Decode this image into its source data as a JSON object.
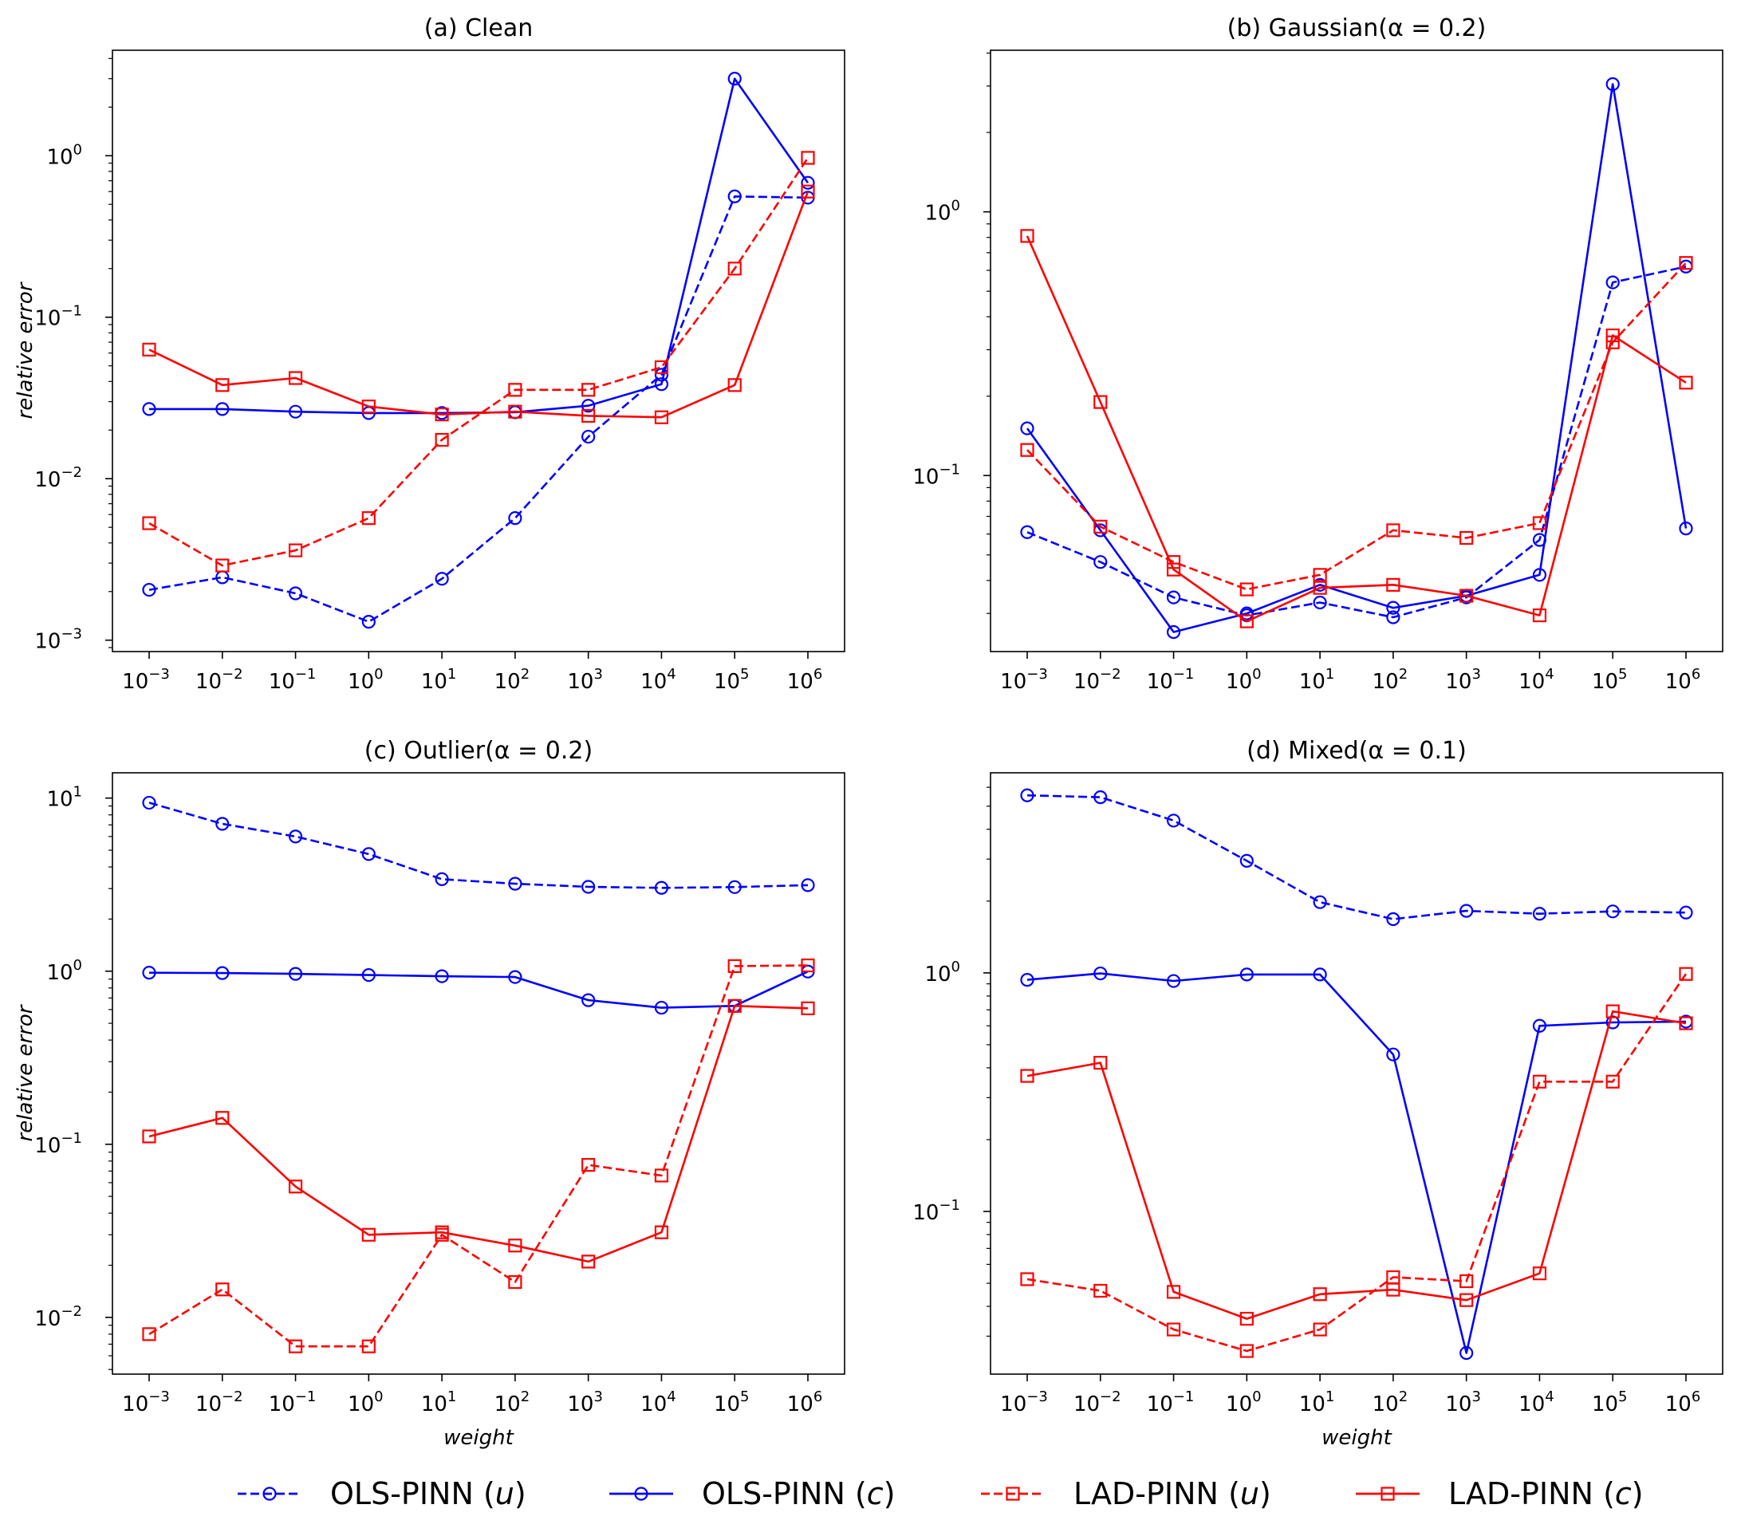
{
  "legend": [
    {
      "label": "OLS-PINN (",
      "var": "u",
      "close": ")",
      "color": "#0000ff",
      "dash": true,
      "marker": "circle"
    },
    {
      "label": "OLS-PINN (",
      "var": "c",
      "close": ")",
      "color": "#0000ff",
      "dash": false,
      "marker": "circle"
    },
    {
      "label": "LAD-PINN (",
      "var": "u",
      "close": ")",
      "color": "#ff0000",
      "dash": true,
      "marker": "square"
    },
    {
      "label": "LAD-PINN (",
      "var": "c",
      "close": ")",
      "color": "#ff0000",
      "dash": false,
      "marker": "square"
    }
  ],
  "chart_data": [
    {
      "type": "line",
      "title": "(a) Clean",
      "xlabel": "",
      "ylabel": "relative error",
      "xscale": "log",
      "yscale": "log",
      "x_exponents": [
        -3,
        -2,
        -1,
        0,
        1,
        2,
        3,
        4,
        5,
        6
      ],
      "y_tick_exponents": [
        -3,
        -2,
        -1,
        0
      ],
      "ylim": [
        0.00085,
        4.5
      ],
      "series": [
        {
          "name": "OLS-PINN (u)",
          "values": [
            0.00205,
            0.00245,
            0.00195,
            0.0013,
            0.0024,
            0.0057,
            0.0182,
            0.044,
            0.56,
            0.55
          ]
        },
        {
          "name": "OLS-PINN (c)",
          "values": [
            0.027,
            0.027,
            0.026,
            0.0255,
            0.0255,
            0.0258,
            0.0283,
            0.0385,
            3.0,
            0.68
          ]
        },
        {
          "name": "LAD-PINN (u)",
          "values": [
            0.0053,
            0.0029,
            0.0036,
            0.0057,
            0.0174,
            0.0355,
            0.0355,
            0.049,
            0.2,
            0.97
          ]
        },
        {
          "name": "LAD-PINN (c)",
          "values": [
            0.063,
            0.038,
            0.042,
            0.028,
            0.025,
            0.026,
            0.0245,
            0.024,
            0.038,
            0.6
          ]
        }
      ]
    },
    {
      "type": "line",
      "title": "(b) Gaussian(α = 0.2)",
      "xlabel": "",
      "ylabel": "",
      "xscale": "log",
      "yscale": "log",
      "x_exponents": [
        -3,
        -2,
        -1,
        0,
        1,
        2,
        3,
        4,
        5,
        6
      ],
      "y_tick_exponents": [
        -1,
        0
      ],
      "ylim": [
        0.0215,
        4.1
      ],
      "series": [
        {
          "name": "OLS-PINN (u)",
          "values": [
            0.061,
            0.047,
            0.0345,
            0.0295,
            0.033,
            0.029,
            0.0345,
            0.057,
            0.54,
            0.62
          ]
        },
        {
          "name": "OLS-PINN (c)",
          "values": [
            0.151,
            0.062,
            0.0255,
            0.03,
            0.0385,
            0.0315,
            0.035,
            0.042,
            3.05,
            0.063
          ]
        },
        {
          "name": "LAD-PINN (u)",
          "values": [
            0.125,
            0.064,
            0.047,
            0.037,
            0.042,
            0.062,
            0.058,
            0.066,
            0.32,
            0.64
          ]
        },
        {
          "name": "LAD-PINN (c)",
          "values": [
            0.81,
            0.19,
            0.044,
            0.028,
            0.0375,
            0.0385,
            0.035,
            0.0295,
            0.34,
            0.225
          ]
        }
      ]
    },
    {
      "type": "line",
      "title": "(c) Outlier(α = 0.2)",
      "xlabel": "weight",
      "ylabel": "relative error",
      "xscale": "log",
      "yscale": "log",
      "x_exponents": [
        -3,
        -2,
        -1,
        0,
        1,
        2,
        3,
        4,
        5,
        6
      ],
      "y_tick_exponents": [
        -2,
        -1,
        0,
        1
      ],
      "ylim": [
        0.0047,
        14.0
      ],
      "series": [
        {
          "name": "OLS-PINN (u)",
          "values": [
            9.4,
            7.1,
            6.0,
            4.75,
            3.4,
            3.2,
            3.07,
            3.03,
            3.06,
            3.14
          ]
        },
        {
          "name": "OLS-PINN (c)",
          "values": [
            0.98,
            0.975,
            0.965,
            0.95,
            0.935,
            0.925,
            0.68,
            0.615,
            0.63,
            0.995
          ]
        },
        {
          "name": "LAD-PINN (u)",
          "values": [
            0.008,
            0.0145,
            0.0068,
            0.0068,
            0.03,
            0.016,
            0.076,
            0.066,
            1.07,
            1.08
          ]
        },
        {
          "name": "LAD-PINN (c)",
          "values": [
            0.111,
            0.142,
            0.057,
            0.03,
            0.031,
            0.026,
            0.021,
            0.031,
            0.63,
            0.61
          ]
        }
      ]
    },
    {
      "type": "line",
      "title": "(d) Mixed(α = 0.1)",
      "xlabel": "weight",
      "ylabel": "",
      "xscale": "log",
      "yscale": "log",
      "x_exponents": [
        -3,
        -2,
        -1,
        0,
        1,
        2,
        3,
        4,
        5,
        6
      ],
      "y_tick_exponents": [
        -1,
        0
      ],
      "ylim": [
        0.0208,
        6.9
      ],
      "series": [
        {
          "name": "OLS-PINN (u)",
          "values": [
            5.55,
            5.45,
            4.35,
            2.95,
            1.98,
            1.68,
            1.82,
            1.77,
            1.81,
            1.79
          ]
        },
        {
          "name": "OLS-PINN (c)",
          "values": [
            0.935,
            0.995,
            0.925,
            0.985,
            0.985,
            0.455,
            0.0255,
            0.6,
            0.62,
            0.625
          ]
        },
        {
          "name": "LAD-PINN (u)",
          "values": [
            0.052,
            0.0465,
            0.032,
            0.026,
            0.032,
            0.053,
            0.051,
            0.35,
            0.35,
            0.99
          ]
        },
        {
          "name": "LAD-PINN (c)",
          "values": [
            0.37,
            0.42,
            0.046,
            0.0355,
            0.045,
            0.047,
            0.0425,
            0.055,
            0.69,
            0.615
          ]
        }
      ]
    }
  ]
}
